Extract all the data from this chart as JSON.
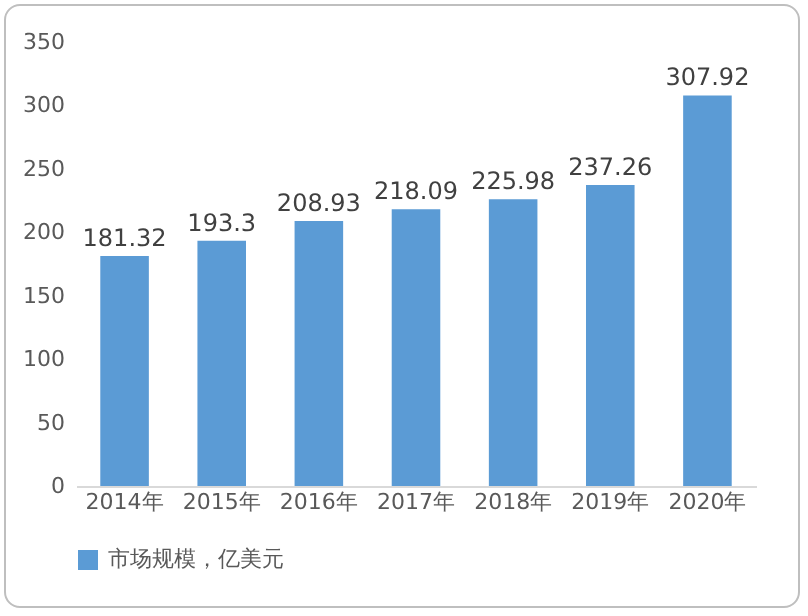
{
  "chart_data": {
    "type": "bar",
    "categories": [
      "2014年",
      "2015年",
      "2016年",
      "2017年",
      "2018年",
      "2019年",
      "2020年"
    ],
    "series": [
      {
        "name": "市场规模，亿美元",
        "color": "#5b9bd5",
        "values": [
          181.32,
          193.3,
          208.93,
          218.09,
          225.98,
          237.26,
          307.92
        ]
      }
    ],
    "ylim": [
      0,
      350
    ],
    "yticks": [
      0,
      50,
      100,
      150,
      200,
      250,
      300,
      350
    ],
    "data_labels": true,
    "grid": false,
    "legend": "bottom"
  }
}
